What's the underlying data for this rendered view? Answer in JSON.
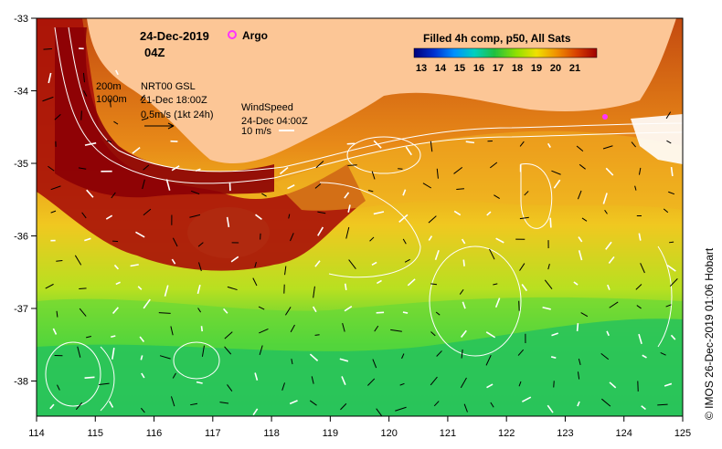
{
  "header": {
    "date": "24-Dec-2019",
    "hour": "04Z",
    "argo_label": "Argo"
  },
  "legend": {
    "title": "Filled 4h comp, p50, All Sats",
    "ticks": [
      "13",
      "14",
      "15",
      "16",
      "17",
      "18",
      "19",
      "20",
      "21"
    ]
  },
  "contours": {
    "line1": "200m",
    "line2": "1000m"
  },
  "currents": {
    "source": "NRT00 GSL",
    "time": "21-Dec 18:00Z",
    "scale": "0.5m/s (1kt 24h)"
  },
  "wind": {
    "title": "WindSpeed",
    "time": "24-Dec 04:00Z",
    "scale": "10 m/s"
  },
  "axes": {
    "x_ticks": [
      "114",
      "115",
      "116",
      "117",
      "118",
      "119",
      "120",
      "121",
      "122",
      "123",
      "124",
      "125"
    ],
    "y_ticks": [
      "-33",
      "-34",
      "-35",
      "-36",
      "-37",
      "-38"
    ]
  },
  "credit": "© IMOS 26-Dec-2019 01:06 Hobart",
  "colors": {
    "land": "#fcc696",
    "argo": "#ff33ff",
    "contour": "#ffffff",
    "scale": [
      "#00007a",
      "#0030d0",
      "#0090ff",
      "#00d0c0",
      "#20c040",
      "#90e000",
      "#f0e000",
      "#f09000",
      "#d84000",
      "#a00000"
    ]
  }
}
